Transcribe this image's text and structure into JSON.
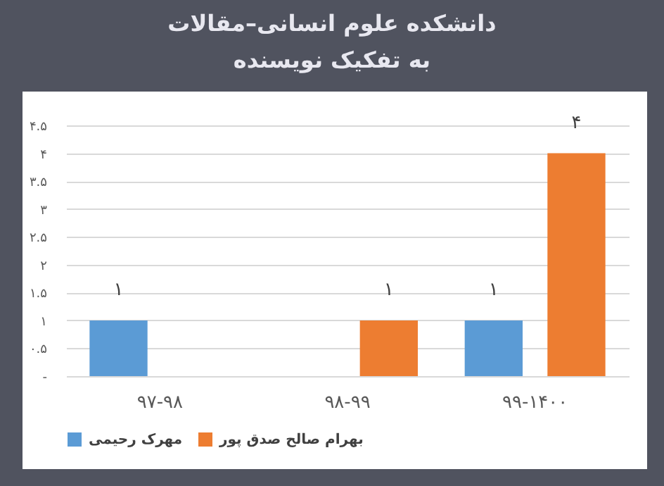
{
  "chart_data": {
    "type": "bar",
    "title": "دانشکده علوم انسانی–مقالات به تفکیک نویسنده",
    "categories": [
      "۹۷-۹۸",
      "۹۸-۹۹",
      "۹۹-۱۴۰۰"
    ],
    "series": [
      {
        "name": "مهرک رحیمی",
        "color": "#5b9bd5",
        "values": [
          1,
          null,
          1
        ],
        "value_labels": [
          "۱",
          null,
          "۱"
        ]
      },
      {
        "name": "بهرام صالح صدق پور",
        "color": "#ed7d31",
        "values": [
          null,
          1,
          4
        ],
        "value_labels": [
          null,
          "۱",
          "۴"
        ]
      }
    ],
    "ylim": [
      0,
      4.5
    ],
    "yticks": [
      {
        "value": 0,
        "label": "-"
      },
      {
        "value": 0.5,
        "label": "۰.۵"
      },
      {
        "value": 1,
        "label": "۱"
      },
      {
        "value": 1.5,
        "label": "۱.۵"
      },
      {
        "value": 2,
        "label": "۲"
      },
      {
        "value": 2.5,
        "label": "۲.۵"
      },
      {
        "value": 3,
        "label": "۳"
      },
      {
        "value": 3.5,
        "label": "۳.۵"
      },
      {
        "value": 4,
        "label": "۴"
      },
      {
        "value": 4.5,
        "label": "۴.۵"
      }
    ],
    "grid": "y",
    "legend": "bottom"
  }
}
